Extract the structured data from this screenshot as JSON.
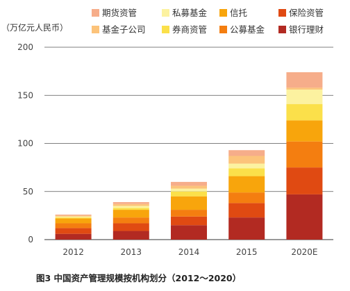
{
  "chart_data": {
    "type": "bar",
    "stacked": true,
    "ylabel": "（万亿元人民币）",
    "ylim": [
      0,
      200
    ],
    "yticks": [
      0,
      50,
      100,
      150,
      200
    ],
    "grid": true,
    "legend_position": "top",
    "categories": [
      "2012",
      "2013",
      "2014",
      "2015",
      "2020E"
    ],
    "series": [
      {
        "name": "银行理财",
        "color": "#b22a22",
        "values": [
          6,
          9,
          15,
          23,
          47
        ]
      },
      {
        "name": "保险资管",
        "color": "#e04a12",
        "values": [
          6,
          8,
          9,
          15,
          28
        ]
      },
      {
        "name": "公募基金",
        "color": "#f47e10",
        "values": [
          5,
          6,
          7,
          11,
          27
        ]
      },
      {
        "name": "信托",
        "color": "#f8a50c",
        "values": [
          5,
          8,
          14,
          17,
          22
        ]
      },
      {
        "name": "券商资管",
        "color": "#fbe04a",
        "values": [
          1,
          2,
          5,
          8,
          17
        ]
      },
      {
        "name": "私募基金",
        "color": "#fcf2a0",
        "values": [
          1,
          2,
          3,
          5,
          15
        ]
      },
      {
        "name": "基金子公司",
        "color": "#fcc37a",
        "values": [
          1,
          2,
          3,
          8,
          2
        ]
      },
      {
        "name": "期货资管",
        "color": "#f6ad8a",
        "values": [
          1,
          2,
          4,
          6,
          16
        ]
      }
    ],
    "legend_order": [
      "期货资管",
      "私募基金",
      "信托",
      "保险资管",
      "基金子公司",
      "券商资管",
      "公募基金",
      "银行理财"
    ],
    "caption": "图3   中国资产管理规模按机构划分（2012～2020）"
  }
}
